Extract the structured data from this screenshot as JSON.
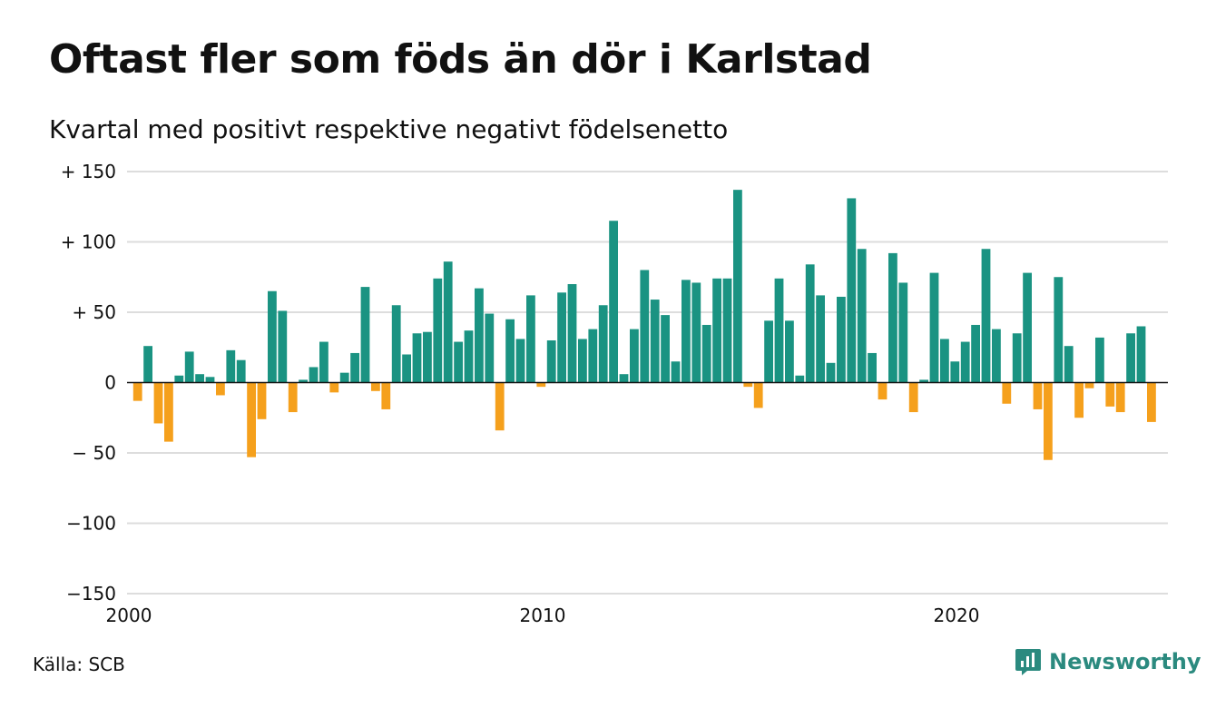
{
  "title": "Oftast fler som föds än dör i Karlstad",
  "subtitle": "Kvartal med positivt respektive negativt födelsenetto",
  "source": "Källa: SCB",
  "brand": "Newsworthy",
  "colors": {
    "positive": "#1a9382",
    "negative": "#f5a01c",
    "grid": "#dddddd",
    "brand": "#2b8a7f"
  },
  "chart_data": {
    "type": "bar",
    "ylim": [
      -150,
      150
    ],
    "yticks": [
      {
        "value": 150,
        "label": "+ 150"
      },
      {
        "value": 100,
        "label": "+ 100"
      },
      {
        "value": 50,
        "label": "+  50"
      },
      {
        "value": 0,
        "label": "0"
      },
      {
        "value": -50,
        "label": "− 50"
      },
      {
        "value": -100,
        "label": "−100"
      },
      {
        "value": -150,
        "label": "−150"
      }
    ],
    "xticks": [
      {
        "value": 2000,
        "label": "2000"
      },
      {
        "value": 2010,
        "label": "2010"
      },
      {
        "value": 2020,
        "label": "2020"
      }
    ],
    "x_start": "2000 Q1",
    "values": [
      -13,
      26,
      -29,
      -42,
      5,
      22,
      6,
      4,
      -9,
      23,
      16,
      -53,
      -26,
      65,
      51,
      -21,
      2,
      11,
      29,
      -7,
      7,
      21,
      68,
      -6,
      -19,
      55,
      20,
      35,
      36,
      74,
      86,
      29,
      37,
      67,
      49,
      -34,
      45,
      31,
      62,
      -3,
      30,
      64,
      70,
      31,
      38,
      55,
      115,
      6,
      38,
      80,
      59,
      48,
      15,
      73,
      71,
      41,
      74,
      74,
      137,
      -3,
      -18,
      44,
      74,
      44,
      5,
      84,
      62,
      14,
      61,
      131,
      95,
      21,
      -12,
      92,
      71,
      -21,
      2,
      78,
      31,
      15,
      29,
      41,
      95,
      38,
      -15,
      35,
      78,
      -19,
      -55,
      75,
      26,
      -25,
      -4,
      32,
      -17,
      -21,
      35,
      40,
      -28
    ]
  }
}
